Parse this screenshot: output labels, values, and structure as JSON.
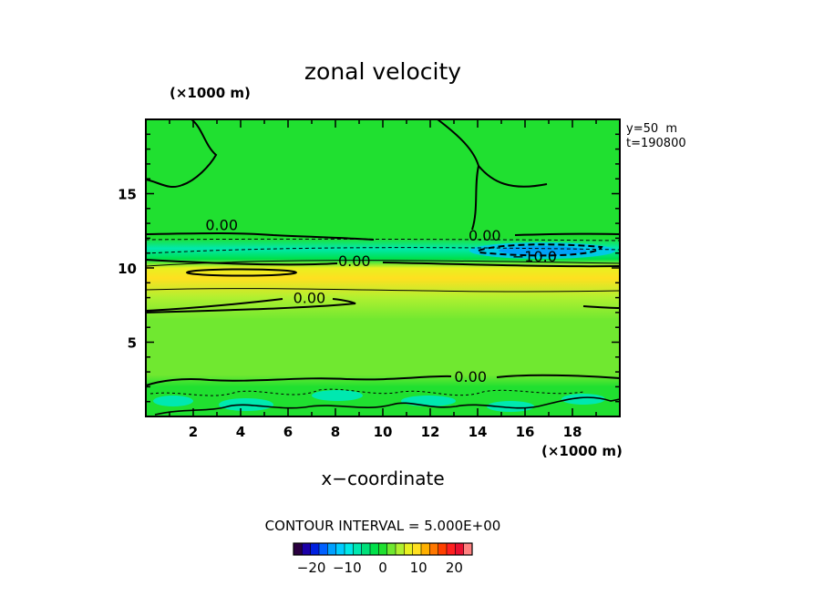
{
  "chart_data": {
    "type": "heatmap",
    "title": "zonal velocity",
    "xlabel": "x−coordinate",
    "x_unit": "(×1000 m)",
    "y_unit": "(×1000 m)",
    "xlim": [
      0,
      20
    ],
    "ylim": [
      0,
      20
    ],
    "x_ticks": [
      "2",
      "4",
      "6",
      "8",
      "10",
      "12",
      "14",
      "16",
      "18"
    ],
    "y_ticks": [
      "5",
      "10",
      "15"
    ],
    "info": [
      "y=50  m",
      "t=190800"
    ],
    "contour_interval_text": "CONTOUR INTERVAL = 5.000E+00",
    "contour_labels": [
      {
        "text": "0.00",
        "x": 3.2,
        "y": 12.9
      },
      {
        "text": "0.00",
        "x": 14.3,
        "y": 12.2
      },
      {
        "text": "0.00",
        "x": 8.8,
        "y": 10.5
      },
      {
        "text": "−10.0",
        "x": 16.4,
        "y": 10.8
      },
      {
        "text": "0.00",
        "x": 6.9,
        "y": 8.0
      },
      {
        "text": "0.00",
        "x": 13.7,
        "y": 2.7
      }
    ],
    "field_bands": [
      {
        "y": 0.0,
        "value": 0
      },
      {
        "y": 2.0,
        "value": 1
      },
      {
        "y": 2.8,
        "value": 2
      },
      {
        "y": 6.5,
        "value": 2.5
      },
      {
        "y": 8.0,
        "value": 5
      },
      {
        "y": 9.3,
        "value": 9
      },
      {
        "y": 10.0,
        "value": 7
      },
      {
        "y": 10.6,
        "value": -3
      },
      {
        "y": 11.3,
        "value": -6
      },
      {
        "y": 12.0,
        "value": -1
      },
      {
        "y": 13.0,
        "value": 1
      },
      {
        "y": 20.0,
        "value": 1
      }
    ],
    "colorbar": {
      "ticks": [
        "−20",
        "−10",
        "0",
        "10",
        "20"
      ],
      "colors": [
        "#2a0040",
        "#1c00a8",
        "#0020e0",
        "#0060ff",
        "#00a0ff",
        "#00ccff",
        "#00e8e8",
        "#00e8b0",
        "#00e07a",
        "#00e04a",
        "#20e030",
        "#70e830",
        "#b0f030",
        "#e8f020",
        "#ffe020",
        "#ffb000",
        "#ff7800",
        "#ff4000",
        "#ff2020",
        "#e81030",
        "#ff8080"
      ]
    }
  }
}
